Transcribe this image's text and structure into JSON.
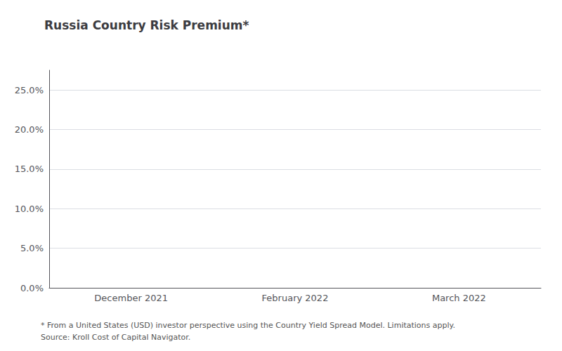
{
  "chart_data": {
    "type": "bar",
    "title": "Russia Country Risk Premium*",
    "categories": [
      "December 2021",
      "February 2022",
      "March 2022"
    ],
    "values": [
      null,
      null,
      null
    ],
    "ylim": [
      0.0,
      0.275
    ],
    "yticks": [
      {
        "value": 0.0,
        "label": "0.0%"
      },
      {
        "value": 0.05,
        "label": "5.0%"
      },
      {
        "value": 0.1,
        "label": "10.0%"
      },
      {
        "value": 0.15,
        "label": "15.0%"
      },
      {
        "value": 0.2,
        "label": "20.0%"
      },
      {
        "value": 0.25,
        "label": "25.0%"
      }
    ],
    "grid": true,
    "annotations": [
      "* From a United States (USD) investor perspective using the Country Yield Spread Model. Limitations apply.",
      "Source: Kroll Cost of Capital Navigator."
    ]
  }
}
